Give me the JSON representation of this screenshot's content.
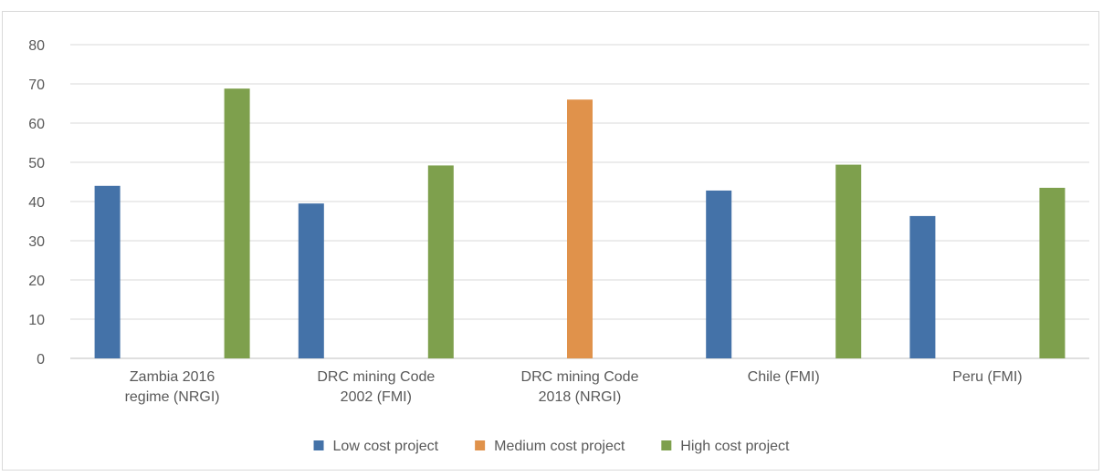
{
  "chart_data": {
    "type": "bar",
    "title": "",
    "xlabel": "",
    "ylabel": "",
    "ylim": [
      0,
      80
    ],
    "yticks": [
      0,
      10,
      20,
      30,
      40,
      50,
      60,
      70,
      80
    ],
    "grid": true,
    "legend_position": "bottom",
    "categories": [
      [
        "Zambia 2016",
        "regime (NRGI)"
      ],
      [
        "DRC mining Code",
        "2002 (FMI)"
      ],
      [
        "DRC mining Code",
        "2018 (NRGI)"
      ],
      [
        "Chile (FMI)"
      ],
      [
        "Peru (FMI)"
      ]
    ],
    "series": [
      {
        "name": "Low cost project",
        "color": "#4472a8",
        "values": [
          44,
          39.5,
          null,
          42.8,
          36.3
        ]
      },
      {
        "name": "Medium cost project",
        "color": "#e0924b",
        "values": [
          null,
          null,
          66,
          null,
          null
        ]
      },
      {
        "name": "High cost project",
        "color": "#7ea04d",
        "values": [
          68.8,
          49.2,
          null,
          49.4,
          43.5
        ]
      }
    ]
  }
}
